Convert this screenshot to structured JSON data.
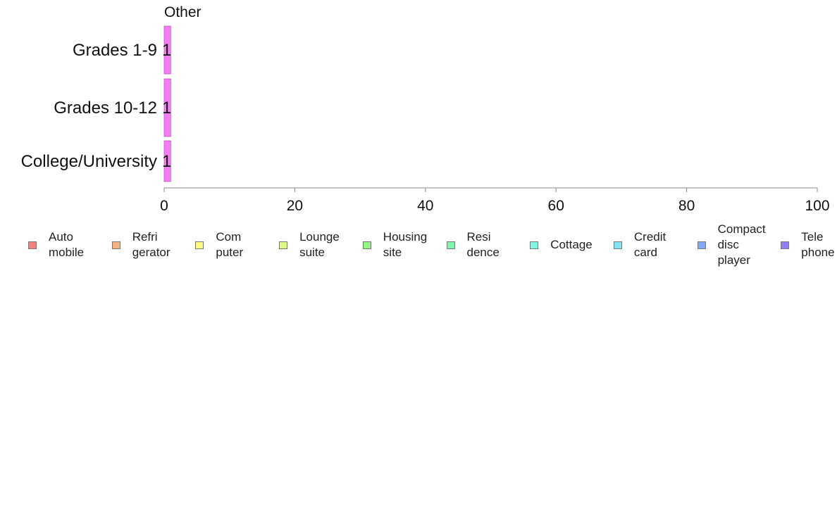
{
  "chart_data": {
    "type": "bar",
    "orientation": "horizontal",
    "panel_title": "Other",
    "categories": [
      "Grades 1-9",
      "Grades 10-12",
      "College/University"
    ],
    "series": [
      {
        "name": "Other",
        "values": [
          1,
          1,
          1
        ],
        "color": "#f77bf7"
      }
    ],
    "data_labels": [
      "1",
      "1",
      "1"
    ],
    "xlim": [
      0,
      100
    ],
    "xticks": [
      "0",
      "20",
      "40",
      "60",
      "80",
      "100"
    ],
    "grid": false,
    "legend_position": "bottom",
    "legend": [
      {
        "label": "Auto\nmobile",
        "color": "#f58080"
      },
      {
        "label": "Refri\ngerator",
        "color": "#f7b07c"
      },
      {
        "label": "Com\nputer",
        "color": "#fbfb80"
      },
      {
        "label": "Lounge\nsuite",
        "color": "#dcfb80"
      },
      {
        "label": "Housing\nsite",
        "color": "#90f780"
      },
      {
        "label": "Resi\ndence",
        "color": "#80f7a8"
      },
      {
        "label": "Cottage",
        "color": "#80f7e4"
      },
      {
        "label": "Credit\ncard",
        "color": "#80e4f7"
      },
      {
        "label": "Compact\ndisc\nplayer",
        "color": "#80a8f7"
      },
      {
        "label": "Tele\nphone",
        "color": "#9080f7"
      }
    ]
  }
}
